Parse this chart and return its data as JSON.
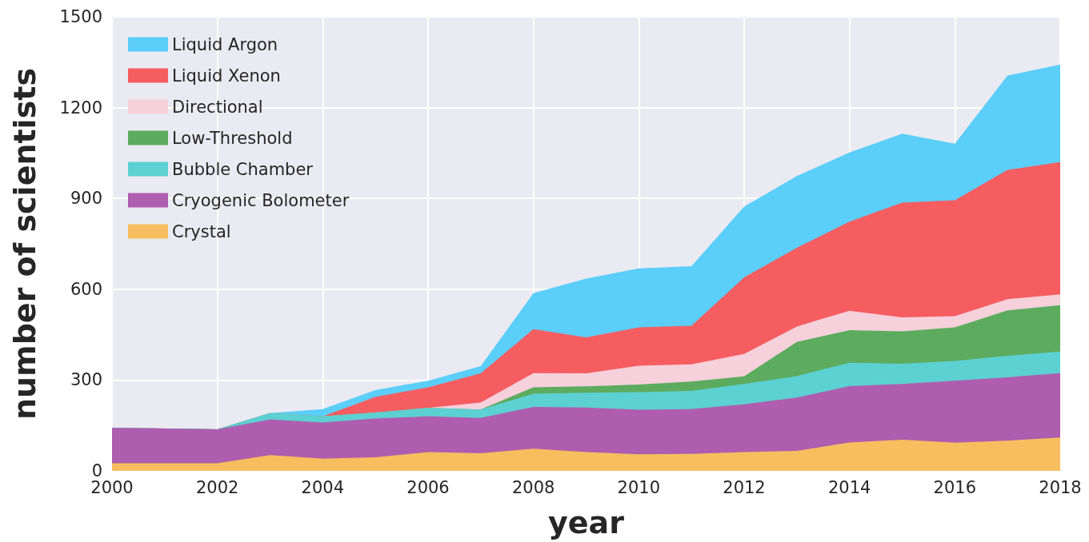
{
  "chart_data": {
    "type": "area",
    "stacked": true,
    "xlabel": "year",
    "ylabel": "number of scientists",
    "x": [
      2000,
      2001,
      2002,
      2003,
      2004,
      2005,
      2006,
      2007,
      2008,
      2009,
      2010,
      2011,
      2012,
      2013,
      2014,
      2015,
      2016,
      2017,
      2018
    ],
    "xlim": [
      2000,
      2018
    ],
    "xticks": [
      2000,
      2002,
      2004,
      2006,
      2008,
      2010,
      2012,
      2014,
      2016,
      2018
    ],
    "ylim": [
      0,
      1500
    ],
    "yticks": [
      0,
      300,
      600,
      900,
      1200,
      1500
    ],
    "grid": true,
    "legend": "top left",
    "series": [
      {
        "name": "Crystal",
        "color": "#f6be5f",
        "values": [
          25,
          25,
          25,
          52,
          40,
          45,
          62,
          58,
          73,
          62,
          55,
          56,
          62,
          66,
          94,
          103,
          93,
          100,
          110
        ]
      },
      {
        "name": "Cryogenic Bolometer",
        "color": "#af5daf",
        "values": [
          117,
          115,
          112,
          118,
          120,
          128,
          118,
          117,
          138,
          147,
          147,
          148,
          158,
          176,
          186,
          184,
          205,
          209,
          213
        ]
      },
      {
        "name": "Bubble Chamber",
        "color": "#5dd0d2",
        "values": [
          0,
          0,
          0,
          21,
          20,
          20,
          28,
          28,
          44,
          49,
          58,
          60,
          67,
          71,
          77,
          67,
          65,
          71,
          71
        ]
      },
      {
        "name": "Low-Threshold",
        "color": "#5dab5f",
        "values": [
          0,
          0,
          0,
          0,
          0,
          0,
          0,
          0,
          21,
          21,
          25,
          31,
          25,
          113,
          108,
          107,
          111,
          150,
          153
        ]
      },
      {
        "name": "Directional",
        "color": "#f6d0da",
        "values": [
          0,
          0,
          0,
          0,
          0,
          0,
          0,
          23,
          47,
          43,
          62,
          57,
          74,
          51,
          64,
          46,
          37,
          37,
          36
        ]
      },
      {
        "name": "Liquid Xenon",
        "color": "#f65d61",
        "values": [
          0,
          0,
          0,
          0,
          0,
          51,
          68,
          96,
          145,
          119,
          127,
          127,
          253,
          260,
          294,
          379,
          383,
          427,
          437
        ]
      },
      {
        "name": "Liquid Argon",
        "color": "#5bcefa",
        "values": [
          0,
          0,
          0,
          0,
          24,
          23,
          22,
          24,
          119,
          194,
          195,
          197,
          234,
          237,
          229,
          228,
          187,
          312,
          322
        ]
      }
    ]
  }
}
